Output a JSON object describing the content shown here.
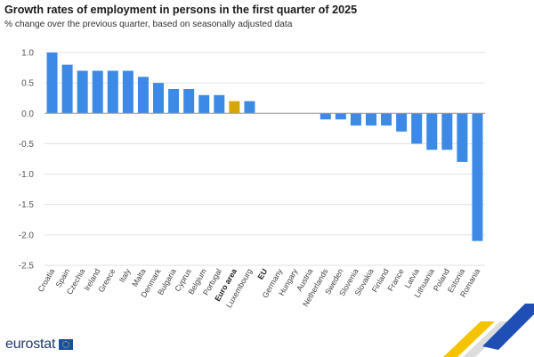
{
  "header": {
    "title": "Growth rates of employment in persons in the first quarter of 2025",
    "subtitle": "% change over the previous quarter, based on seasonally adjusted data"
  },
  "brand": {
    "logo_text": "eurostat"
  },
  "colors": {
    "bar": "#3c8ae6",
    "highlight": "#d6a60a",
    "grid": "#e2e2e2",
    "axis": "#555555"
  },
  "chart_data": {
    "type": "bar",
    "categories": [
      "Croatia",
      "Spain",
      "Czechia",
      "Ireland",
      "Greece",
      "Italy",
      "Malta",
      "Denmark",
      "Bulgaria",
      "Cyprus",
      "Belgium",
      "Portugal",
      "Euro area",
      "Luxembourg",
      "EU",
      "Germany",
      "Hungary",
      "Austria",
      "Netherlands",
      "Sweden",
      "Slovenia",
      "Slovakia",
      "Finland",
      "France",
      "Latvia",
      "Lithuania",
      "Poland",
      "Estonia",
      "Romania"
    ],
    "values": [
      1.0,
      0.8,
      0.7,
      0.7,
      0.7,
      0.7,
      0.6,
      0.5,
      0.4,
      0.4,
      0.3,
      0.3,
      0.2,
      0.2,
      0.0,
      0.0,
      0.0,
      0.0,
      -0.1,
      -0.1,
      -0.2,
      -0.2,
      -0.2,
      -0.3,
      -0.5,
      -0.6,
      -0.6,
      -0.8,
      -2.1
    ],
    "highlighted": [
      "Euro area"
    ],
    "bold_categories": [
      "Euro area",
      "EU"
    ],
    "ylim": [
      -2.5,
      1.0
    ],
    "yticks": [
      1.0,
      0.5,
      0.0,
      -0.5,
      -1.0,
      -1.5,
      -2.0,
      -2.5
    ],
    "ytick_labels": [
      "1.0",
      "0.5",
      "0.0",
      "-0.5",
      "-1.0",
      "-1.5",
      "-2.0",
      "-2.5"
    ],
    "grid": true,
    "legend": "none"
  }
}
